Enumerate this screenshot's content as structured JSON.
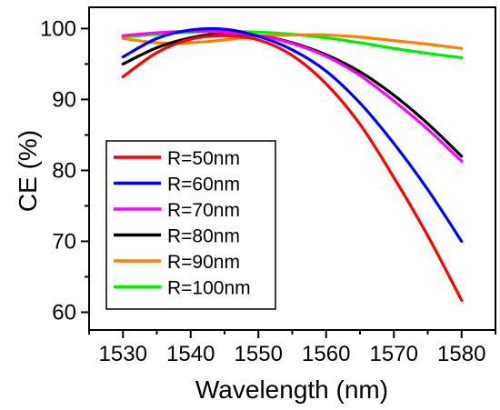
{
  "chart_data": {
    "type": "line",
    "xlabel": "Wavelength (nm)",
    "ylabel": "CE (%)",
    "xlim": [
      1525,
      1585
    ],
    "ylim": [
      57.5,
      103
    ],
    "x_ticks": [
      1530,
      1540,
      1550,
      1560,
      1570,
      1580
    ],
    "y_ticks": [
      60,
      70,
      80,
      90,
      100
    ],
    "grid": false,
    "legend_placement": "lower-left",
    "x": [
      1530,
      1535,
      1540,
      1545,
      1550,
      1555,
      1560,
      1565,
      1570,
      1575,
      1580
    ],
    "series": [
      {
        "name": "R=50nm",
        "color": "#ff0000",
        "values": [
          93.2,
          96.6,
          98.5,
          99.0,
          98.4,
          96.2,
          92.2,
          86.5,
          79.0,
          70.8,
          61.7
        ]
      },
      {
        "name": "R=60nm",
        "color": "#0000ff",
        "values": [
          96.0,
          98.6,
          99.8,
          99.9,
          98.9,
          97.0,
          94.0,
          89.5,
          83.8,
          77.3,
          70.0
        ]
      },
      {
        "name": "R=70nm",
        "color": "#ff00ff",
        "values": [
          99.0,
          99.4,
          99.6,
          99.5,
          99.0,
          97.9,
          96.1,
          93.4,
          89.8,
          85.8,
          81.3
        ]
      },
      {
        "name": "R=80nm",
        "color": "#000000",
        "values": [
          95.0,
          97.3,
          98.7,
          99.3,
          99.0,
          98.0,
          96.3,
          93.9,
          90.6,
          86.6,
          82.0
        ]
      },
      {
        "name": "R=90nm",
        "color": "#ff8000",
        "values": [
          98.6,
          98.0,
          98.0,
          98.4,
          98.9,
          99.1,
          99.1,
          98.8,
          98.3,
          97.8,
          97.2
        ]
      },
      {
        "name": "R=100nm",
        "color": "#00ee00",
        "values": [
          98.8,
          99.2,
          99.5,
          99.6,
          99.5,
          99.2,
          98.7,
          98.0,
          97.2,
          96.5,
          95.9
        ]
      }
    ]
  }
}
